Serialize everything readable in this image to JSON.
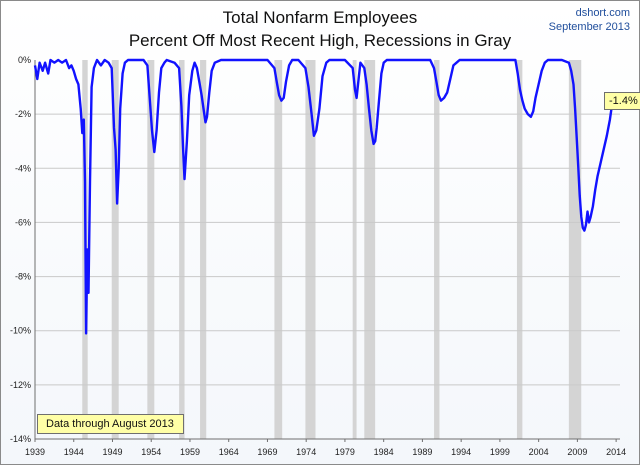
{
  "header": {
    "title_line1": "Total Nonfarm Employees",
    "title_line2": "Percent Off Most Recent High, Recessions in Gray",
    "source_line1": "dshort.com",
    "source_line2": "September 2013"
  },
  "note": "Data through August 2013",
  "callout": "-1.4%",
  "colors": {
    "series": "#1212ff",
    "recession": "#d4d4d4",
    "grid": "#c9c9c9",
    "callout_bg": "#ffffa6"
  },
  "chart_data": {
    "type": "line",
    "title": "Total Nonfarm Employees / Percent Off Most Recent High, Recessions in Gray",
    "xlabel": "",
    "ylabel": "",
    "xlim": [
      1939.0,
      2014.5
    ],
    "ylim": [
      -14,
      0
    ],
    "x_ticks": [
      "1939",
      "1944",
      "1949",
      "1954",
      "1959",
      "1964",
      "1969",
      "1974",
      "1979",
      "1984",
      "1989",
      "1994",
      "1999",
      "2004",
      "2009",
      "2014"
    ],
    "y_ticks": [
      "0%",
      "-2%",
      "-4%",
      "-6%",
      "-8%",
      "-10%",
      "-12%",
      "-14%"
    ],
    "recessions": [
      [
        1945.1,
        1945.8
      ],
      [
        1948.9,
        1949.8
      ],
      [
        1953.5,
        1954.4
      ],
      [
        1957.6,
        1958.3
      ],
      [
        1960.3,
        1961.1
      ],
      [
        1969.9,
        1970.9
      ],
      [
        1973.9,
        1975.2
      ],
      [
        1980.0,
        1980.5
      ],
      [
        1981.5,
        1982.9
      ],
      [
        1990.5,
        1991.2
      ],
      [
        2001.2,
        2001.9
      ],
      [
        2007.9,
        2009.5
      ]
    ],
    "series": [
      {
        "x": [
          1939.0,
          1939.3,
          1939.6,
          1940.0,
          1940.3,
          1940.7,
          1941.0,
          1941.5,
          1942.0,
          1942.5,
          1943.0,
          1943.4,
          1943.7,
          1944.0,
          1944.3,
          1944.6,
          1944.9,
          1945.1,
          1945.3,
          1945.45,
          1945.6,
          1945.75,
          1945.9,
          1946.1,
          1946.3,
          1946.6,
          1947.0,
          1947.5,
          1948.0,
          1948.5,
          1948.9,
          1949.2,
          1949.4,
          1949.6,
          1949.8,
          1950.0,
          1950.3,
          1950.6,
          1951.0,
          1952.0,
          1953.0,
          1953.5,
          1953.8,
          1954.1,
          1954.4,
          1954.7,
          1955.0,
          1955.3,
          1955.7,
          1956.0,
          1957.0,
          1957.6,
          1957.9,
          1958.1,
          1958.3,
          1958.6,
          1958.9,
          1959.3,
          1959.6,
          1959.9,
          1960.2,
          1960.5,
          1960.8,
          1961.0,
          1961.2,
          1961.5,
          1961.8,
          1962.2,
          1963.0,
          1964.0,
          1965.0,
          1966.0,
          1967.0,
          1968.0,
          1969.0,
          1969.9,
          1970.2,
          1970.5,
          1970.8,
          1971.1,
          1971.4,
          1971.8,
          1972.2,
          1973.0,
          1973.9,
          1974.3,
          1974.7,
          1975.0,
          1975.3,
          1975.7,
          1976.1,
          1976.6,
          1977.0,
          1978.0,
          1979.0,
          1980.0,
          1980.3,
          1980.5,
          1980.8,
          1981.0,
          1981.5,
          1981.8,
          1982.1,
          1982.4,
          1982.7,
          1982.9,
          1983.1,
          1983.4,
          1983.7,
          1984.0,
          1984.4,
          1985.0,
          1986.0,
          1987.0,
          1988.0,
          1989.0,
          1990.0,
          1990.5,
          1990.8,
          1991.1,
          1991.4,
          1991.8,
          1992.2,
          1992.6,
          1993.0,
          1993.4,
          1993.8,
          1994.5,
          1995.0,
          1996.0,
          1997.0,
          1998.0,
          1999.0,
          2000.0,
          2001.0,
          2001.3,
          2001.6,
          2001.9,
          2002.2,
          2002.6,
          2003.0,
          2003.3,
          2003.6,
          2004.0,
          2004.4,
          2004.8,
          2005.2,
          2005.6,
          2006.0,
          2007.0,
          2007.9,
          2008.2,
          2008.5,
          2008.7,
          2008.9,
          2009.1,
          2009.3,
          2009.5,
          2009.7,
          2009.9,
          2010.1,
          2010.3,
          2010.5,
          2010.7,
          2011.0,
          2011.3,
          2011.6,
          2012.0,
          2012.4,
          2012.8,
          2013.2,
          2013.6
        ],
        "y": [
          -0.2,
          -0.7,
          -0.1,
          -0.4,
          -0.1,
          -0.5,
          0,
          -0.1,
          0,
          -0.1,
          0,
          -0.3,
          -0.2,
          -0.4,
          -0.7,
          -0.9,
          -1.8,
          -2.7,
          -2.2,
          -4.5,
          -10.1,
          -7.0,
          -8.6,
          -4.5,
          -1.0,
          -0.3,
          0,
          -0.2,
          0,
          -0.1,
          -0.3,
          -2.5,
          -3.3,
          -5.3,
          -4.0,
          -1.8,
          -0.5,
          -0.1,
          0,
          0,
          0,
          -0.2,
          -1.4,
          -2.6,
          -3.4,
          -2.6,
          -1.2,
          -0.3,
          -0.1,
          0,
          -0.1,
          -0.3,
          -1.7,
          -3.2,
          -4.4,
          -3.0,
          -1.3,
          -0.4,
          -0.1,
          -0.3,
          -0.8,
          -1.3,
          -1.9,
          -2.3,
          -2.1,
          -1.2,
          -0.4,
          -0.1,
          0,
          0,
          0,
          0,
          0,
          0,
          0,
          -0.3,
          -0.8,
          -1.3,
          -1.5,
          -1.4,
          -0.8,
          -0.2,
          0,
          0,
          -0.3,
          -1.0,
          -2.0,
          -2.8,
          -2.6,
          -1.8,
          -0.6,
          -0.1,
          0,
          0,
          0,
          -0.3,
          -1.1,
          -1.4,
          -0.6,
          -0.1,
          -0.3,
          -0.9,
          -1.8,
          -2.6,
          -3.1,
          -3.0,
          -2.5,
          -1.5,
          -0.5,
          -0.1,
          0,
          0,
          0,
          0,
          0,
          0,
          0,
          -0.3,
          -0.8,
          -1.3,
          -1.5,
          -1.4,
          -1.2,
          -0.7,
          -0.2,
          -0.1,
          0,
          0,
          0,
          0,
          0,
          0,
          0,
          0,
          0,
          -0.5,
          -1.1,
          -1.5,
          -1.8,
          -2.0,
          -2.1,
          -1.9,
          -1.4,
          -0.9,
          -0.4,
          -0.1,
          0,
          0,
          0,
          0,
          -0.1,
          -0.4,
          -0.9,
          -1.8,
          -2.8,
          -3.9,
          -5.0,
          -5.8,
          -6.2,
          -6.3,
          -6.1,
          -5.6,
          -6.0,
          -5.8,
          -5.4,
          -4.8,
          -4.3,
          -3.8,
          -3.3,
          -2.8,
          -2.2,
          -1.4
        ]
      }
    ],
    "annotation": "-1.4%"
  }
}
